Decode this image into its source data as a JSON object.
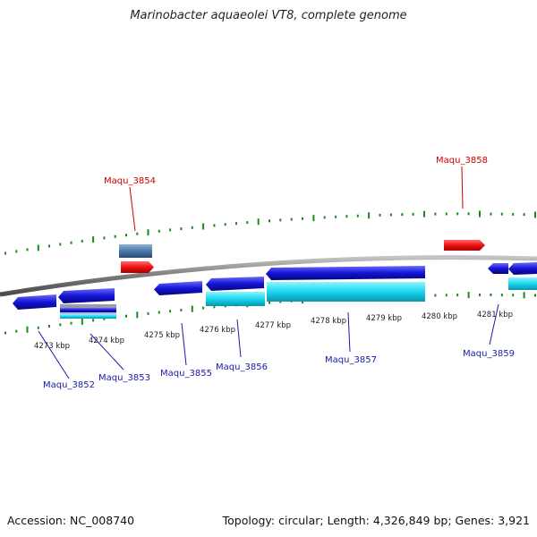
{
  "title": "Marinobacter aquaeolei VT8, complete genome",
  "footer": {
    "accession": "Accession: NC_008740",
    "stats": "Topology: circular; Length: 4,326,849 bp; Genes: 3,921"
  },
  "colors": {
    "backbone": "#8a8a8a",
    "tick": "#1a8a1a",
    "forward_cds": "#e81010",
    "reverse_cds": "#1515d8",
    "reverse_rna": "#19d8ee",
    "forward_label": "#cc0000",
    "reverse_label": "#1a1aaa"
  },
  "kbp_labels": [
    "4273 kbp",
    "4274 kbp",
    "4275 kbp",
    "4276 kbp",
    "4277 kbp",
    "4278 kbp",
    "4279 kbp",
    "4280 kbp",
    "4281 kbp"
  ],
  "gene_labels": {
    "forward": [
      "Maqu_3854",
      "Maqu_3858"
    ],
    "reverse": [
      "Maqu_3852",
      "Maqu_3853",
      "Maqu_3855",
      "Maqu_3856",
      "Maqu_3857",
      "Maqu_3859"
    ]
  }
}
